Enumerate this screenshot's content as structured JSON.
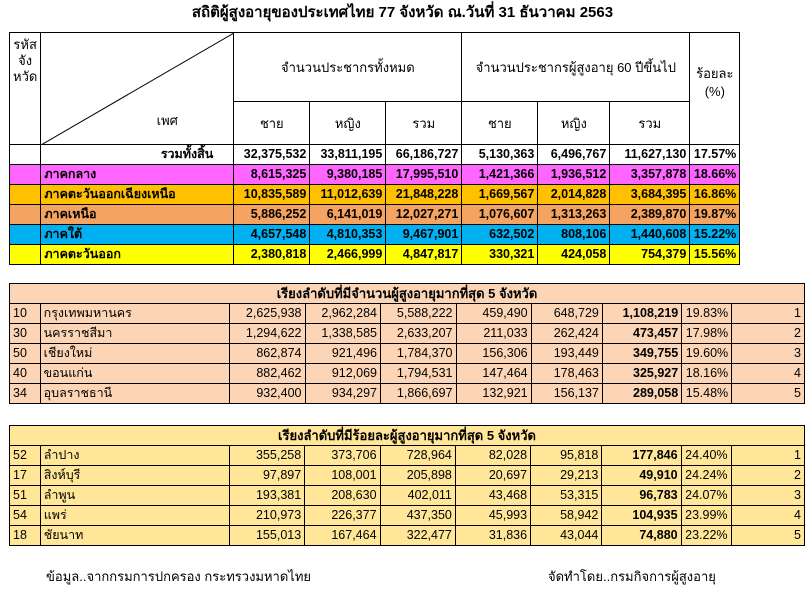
{
  "title": "สถิติผู้สูงอายุของประเทศไทย 77 จังหวัด  ณ.วันที่ 31 ธันวาคม 2563",
  "header": {
    "code_label": "รหัสจังหวัด",
    "code_lines": [
      "รหัส",
      "จัง",
      "หวัด"
    ],
    "sex_label": "เพศ",
    "total_pop": "จำนวนประชากรทั้งหมด",
    "elderly_pop": "จำนวนประชากรผู้สูงอายุ 60 ปีขึ้นไป",
    "percent": "ร้อยละ",
    "percent_unit": "(%)",
    "male": "ชาย",
    "female": "หญิง",
    "total": "รวม"
  },
  "summary_rows": [
    {
      "label": "รวมทั้งสิ้น",
      "vals": [
        "32,375,532",
        "33,811,195",
        "66,186,727",
        "5,130,363",
        "6,496,767",
        "11,627,130",
        "17.57%"
      ],
      "color": "#ffffff"
    },
    {
      "label": "ภาคกลาง",
      "vals": [
        "8,615,325",
        "9,380,185",
        "17,995,510",
        "1,421,366",
        "1,936,512",
        "3,357,878",
        "18.66%"
      ],
      "color": "#ff66ff"
    },
    {
      "label": "ภาคตะวันออกเฉียงเหนือ",
      "vals": [
        "10,835,589",
        "11,012,639",
        "21,848,228",
        "1,669,567",
        "2,014,828",
        "3,684,395",
        "16.86%"
      ],
      "color": "#ffc000"
    },
    {
      "label": "ภาคเหนือ",
      "vals": [
        "5,886,252",
        "6,141,019",
        "12,027,271",
        "1,076,607",
        "1,313,263",
        "2,389,870",
        "19.87%"
      ],
      "color": "#f4a460"
    },
    {
      "label": "ภาคใต้",
      "vals": [
        "4,657,548",
        "4,810,353",
        "9,467,901",
        "632,502",
        "808,106",
        "1,440,608",
        "15.22%"
      ],
      "color": "#00b0f0"
    },
    {
      "label": "ภาคตะวันออก",
      "vals": [
        "2,380,818",
        "2,466,999",
        "4,847,817",
        "330,321",
        "424,058",
        "754,379",
        "15.56%"
      ],
      "color": "#ffff00"
    }
  ],
  "rank_by_count": {
    "title": "เรียงลำดับที่มีจำนวนผู้สูงอายุมากที่สุด 5 จังหวัด",
    "rows": [
      {
        "code": "10",
        "name": "กรุงเทพมหานคร",
        "vals": [
          "2,625,938",
          "2,962,284",
          "5,588,222",
          "459,490",
          "648,729",
          "1,108,219",
          "19.83%"
        ],
        "rank": "1"
      },
      {
        "code": "30",
        "name": "นครราชสีมา",
        "vals": [
          "1,294,622",
          "1,338,585",
          "2,633,207",
          "211,033",
          "262,424",
          "473,457",
          "17.98%"
        ],
        "rank": "2"
      },
      {
        "code": "50",
        "name": "เชียงใหม่",
        "vals": [
          "862,874",
          "921,496",
          "1,784,370",
          "156,306",
          "193,449",
          "349,755",
          "19.60%"
        ],
        "rank": "3"
      },
      {
        "code": "40",
        "name": "ขอนแก่น",
        "vals": [
          "882,462",
          "912,069",
          "1,794,531",
          "147,464",
          "178,463",
          "325,927",
          "18.16%"
        ],
        "rank": "4"
      },
      {
        "code": "34",
        "name": "อุบลราชธานี",
        "vals": [
          "932,400",
          "934,297",
          "1,866,697",
          "132,921",
          "156,137",
          "289,058",
          "15.48%"
        ],
        "rank": "5"
      }
    ]
  },
  "rank_by_percent": {
    "title": "เรียงลำดับที่มีร้อยละผู้สูงอายุมากที่สุด 5 จังหวัด",
    "rows": [
      {
        "code": "52",
        "name": "ลำปาง",
        "vals": [
          "355,258",
          "373,706",
          "728,964",
          "82,028",
          "95,818",
          "177,846",
          "24.40%"
        ],
        "rank": "1"
      },
      {
        "code": "17",
        "name": "สิงห์บุรี",
        "vals": [
          "97,897",
          "108,001",
          "205,898",
          "20,697",
          "29,213",
          "49,910",
          "24.24%"
        ],
        "rank": "2"
      },
      {
        "code": "51",
        "name": "ลำพูน",
        "vals": [
          "193,381",
          "208,630",
          "402,011",
          "43,468",
          "53,315",
          "96,783",
          "24.07%"
        ],
        "rank": "3"
      },
      {
        "code": "54",
        "name": "แพร่",
        "vals": [
          "210,973",
          "226,377",
          "437,350",
          "45,993",
          "58,942",
          "104,935",
          "23.99%"
        ],
        "rank": "4"
      },
      {
        "code": "18",
        "name": "ชัยนาท",
        "vals": [
          "155,013",
          "167,464",
          "322,477",
          "31,836",
          "43,044",
          "74,880",
          "23.22%"
        ],
        "rank": "5"
      }
    ]
  },
  "footer": {
    "source": "ข้อมูล..จากกรมการปกครอง กระทรวงมหาดไทย",
    "prepared_by": "จัดทำโดย..กรมกิจการผู้สูงอายุ"
  }
}
